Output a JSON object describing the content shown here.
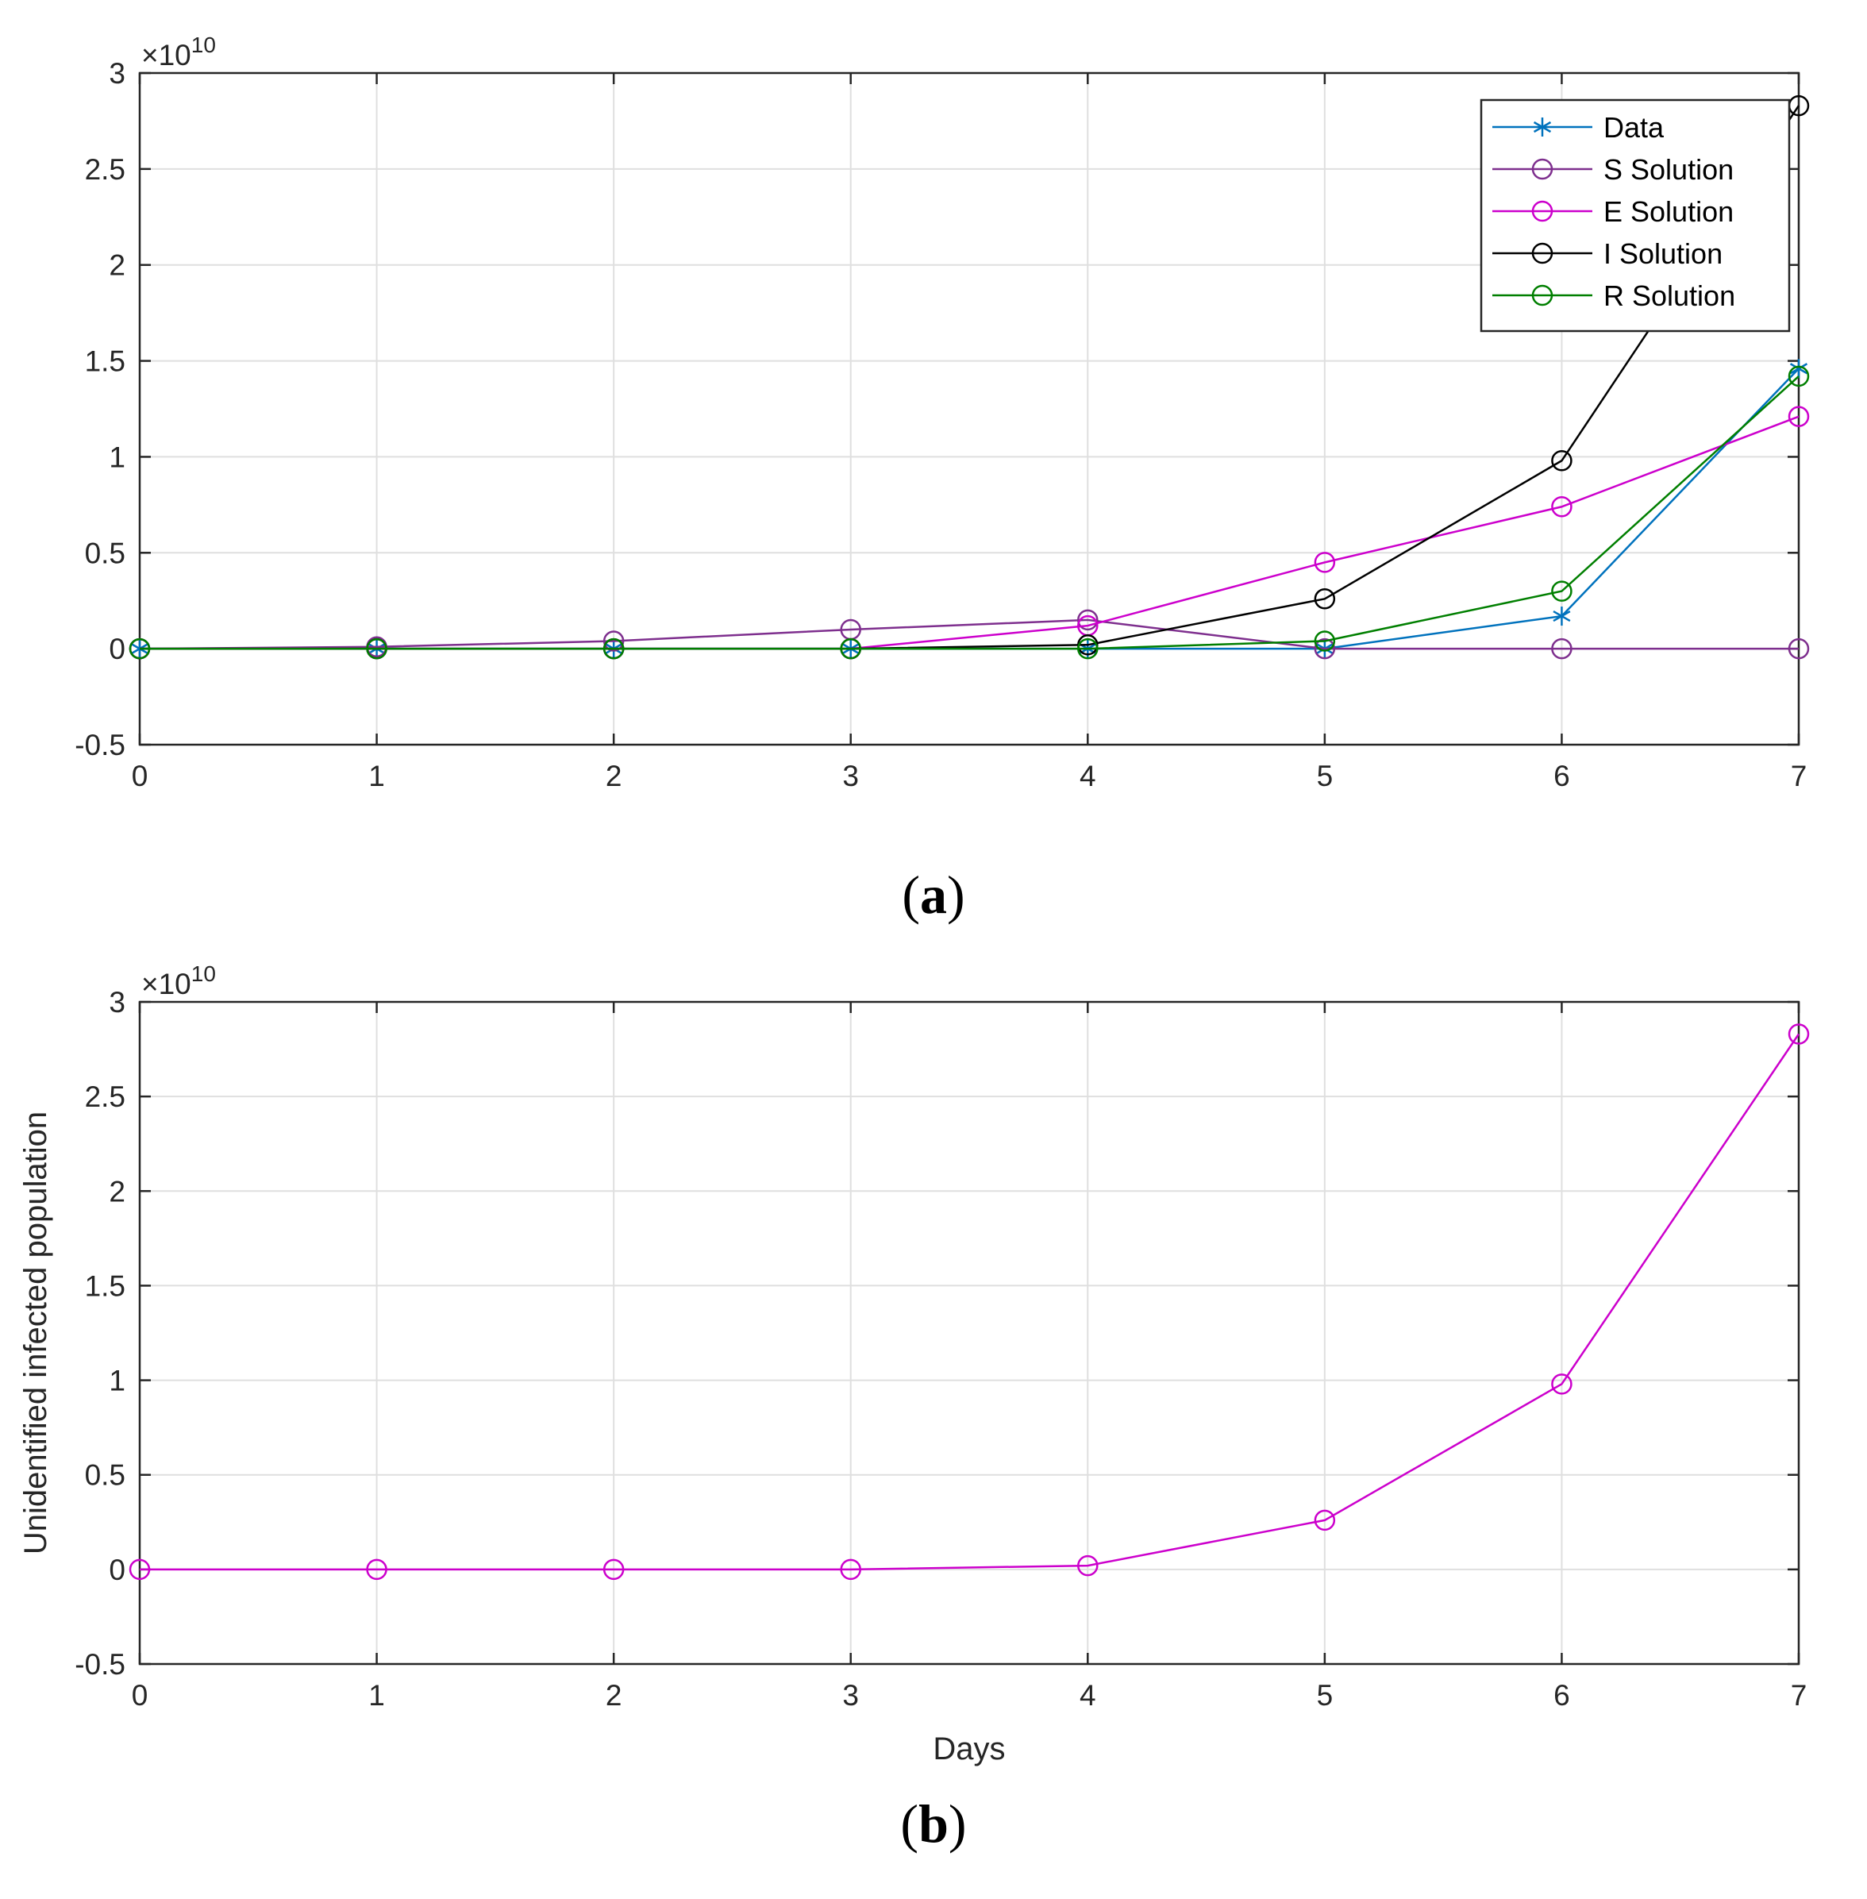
{
  "chart_data": [
    {
      "id": "a",
      "type": "line",
      "caption": "(a)",
      "caption_letter": "a",
      "xlabel": "",
      "ylabel": "",
      "x": [
        0,
        1,
        2,
        3,
        4,
        5,
        6,
        7
      ],
      "xlim": [
        0,
        7
      ],
      "ylim": [
        -0.5,
        3
      ],
      "xticks": [
        "0",
        "1",
        "2",
        "3",
        "4",
        "5",
        "6",
        "7"
      ],
      "yticks": [
        "-0.5",
        "0",
        "0.5",
        "1",
        "1.5",
        "2",
        "2.5",
        "3"
      ],
      "ytick_values": [
        -0.5,
        0,
        0.5,
        1,
        1.5,
        2,
        2.5,
        3
      ],
      "y_multiplier_base": "×10",
      "y_multiplier_exp": "10",
      "grid": true,
      "legend_position": "top-right",
      "series": [
        {
          "name": "Data",
          "marker": "asterisk",
          "color": "#0072BD",
          "values": [
            0,
            0,
            0,
            0,
            0,
            0,
            0.17,
            1.46
          ]
        },
        {
          "name": "S Solution",
          "marker": "circle",
          "color": "#7E2F8E",
          "values": [
            0,
            0.01,
            0.04,
            0.1,
            0.15,
            0,
            0,
            0
          ]
        },
        {
          "name": "E Solution",
          "marker": "circle",
          "color": "#CC00CC",
          "values": [
            0,
            0,
            0,
            0,
            0.12,
            0.45,
            0.74,
            1.21
          ]
        },
        {
          "name": "I Solution",
          "marker": "circle",
          "color": "#000000",
          "values": [
            0,
            0,
            0,
            0,
            0.02,
            0.26,
            0.98,
            2.83
          ]
        },
        {
          "name": "R Solution",
          "marker": "circle",
          "color": "#007F00",
          "values": [
            0,
            0,
            0,
            0,
            0,
            0.04,
            0.3,
            1.42
          ]
        }
      ]
    },
    {
      "id": "b",
      "type": "line",
      "caption": "(b)",
      "caption_letter": "b",
      "xlabel": "Days",
      "ylabel": "Unidentified infected population",
      "x": [
        0,
        1,
        2,
        3,
        4,
        5,
        6,
        7
      ],
      "xlim": [
        0,
        7
      ],
      "ylim": [
        -0.5,
        3
      ],
      "xticks": [
        "0",
        "1",
        "2",
        "3",
        "4",
        "5",
        "6",
        "7"
      ],
      "yticks": [
        "-0.5",
        "0",
        "0.5",
        "1",
        "1.5",
        "2",
        "2.5",
        "3"
      ],
      "ytick_values": [
        -0.5,
        0,
        0.5,
        1,
        1.5,
        2,
        2.5,
        3
      ],
      "y_multiplier_base": "×10",
      "y_multiplier_exp": "10",
      "grid": true,
      "legend_position": "none",
      "series": [
        {
          "name": "Unidentified infected population",
          "marker": "circle",
          "color": "#CC00CC",
          "values": [
            0,
            0,
            0,
            0,
            0.02,
            0.26,
            0.98,
            2.83
          ]
        }
      ]
    }
  ]
}
